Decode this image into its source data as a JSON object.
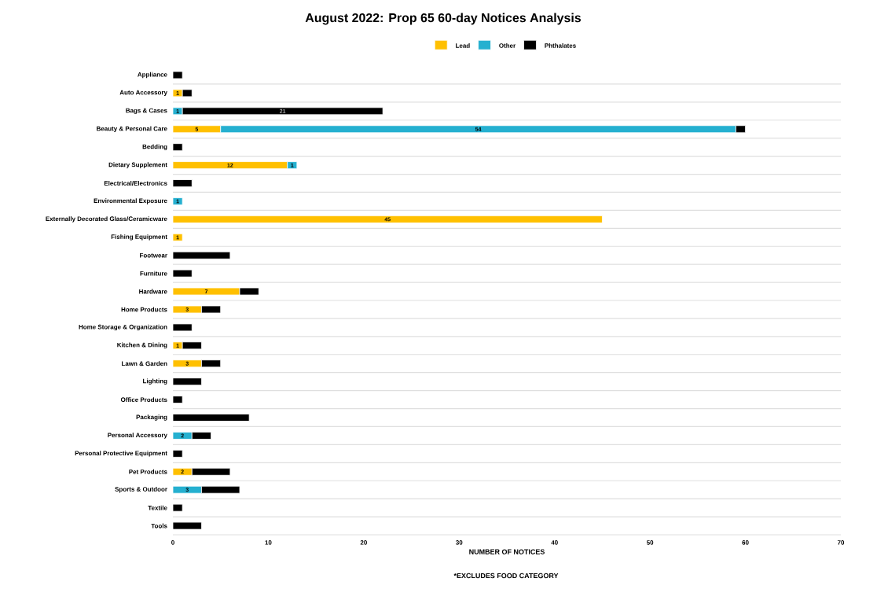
{
  "chart_data": {
    "type": "bar",
    "orientation": "horizontal",
    "stacked": true,
    "title": "August 2022:  Prop 65 60-day Notices Analysis",
    "xlabel": "NUMBER OF NOTICES",
    "annotations": [
      "*EXCLUDES FOOD CATEGORY"
    ],
    "categories": [
      "Appliance",
      "Auto Accessory",
      "Bags & Cases",
      "Beauty & Personal Care",
      "Bedding",
      "Dietary Supplement",
      "Electrical/Electronics",
      "Environmental Exposure",
      "Externally Decorated Glass/Ceramicware",
      "Fishing Equipment",
      "Footwear",
      "Furniture",
      "Hardware",
      "Home Products",
      "Home Storage & Organization",
      "Kitchen & Dining",
      "Lawn & Garden",
      "Lighting",
      "Office Products",
      "Packaging",
      "Personal Accessory",
      "Personal Protective Equipment",
      "Pet Products",
      "Sports & Outdoor",
      "Textile",
      "Tools"
    ],
    "series": [
      {
        "name": "Lead",
        "color": "#ffc000",
        "values": [
          0,
          1,
          0,
          5,
          0,
          12,
          0,
          0,
          45,
          1,
          0,
          0,
          7,
          3,
          0,
          1,
          3,
          0,
          0,
          0,
          0,
          0,
          2,
          0,
          0,
          0
        ],
        "value_labels": [
          null,
          "1",
          null,
          "5",
          null,
          "12",
          null,
          null,
          "45",
          "1",
          null,
          null,
          "7",
          "3",
          null,
          "1",
          "3",
          null,
          null,
          null,
          null,
          null,
          "2",
          null,
          null,
          null
        ]
      },
      {
        "name": "Other",
        "color": "#25b0d0",
        "values": [
          0,
          0,
          1,
          54,
          0,
          1,
          0,
          1,
          0,
          0,
          0,
          0,
          0,
          0,
          0,
          0,
          0,
          0,
          0,
          0,
          2,
          0,
          0,
          3,
          0,
          0
        ],
        "value_labels": [
          null,
          null,
          "1",
          "54",
          null,
          "1",
          null,
          "1",
          null,
          null,
          null,
          null,
          null,
          null,
          null,
          null,
          null,
          null,
          null,
          null,
          "2",
          null,
          null,
          "3",
          null,
          null
        ]
      },
      {
        "name": "Phthalates",
        "color": "#000000",
        "values": [
          1,
          1,
          21,
          1,
          1,
          0,
          2,
          0,
          0,
          0,
          6,
          2,
          2,
          2,
          2,
          2,
          2,
          3,
          1,
          8,
          2,
          1,
          4,
          4,
          1,
          3
        ],
        "value_labels": [
          null,
          null,
          "21",
          null,
          null,
          null,
          null,
          null,
          null,
          null,
          null,
          null,
          null,
          null,
          null,
          null,
          null,
          null,
          null,
          null,
          null,
          null,
          null,
          null,
          null,
          null
        ]
      }
    ],
    "xlim": [
      0,
      70
    ],
    "xticks": [
      0,
      10,
      20,
      30,
      40,
      50,
      60,
      70
    ],
    "grid": "y",
    "legend": "top"
  }
}
